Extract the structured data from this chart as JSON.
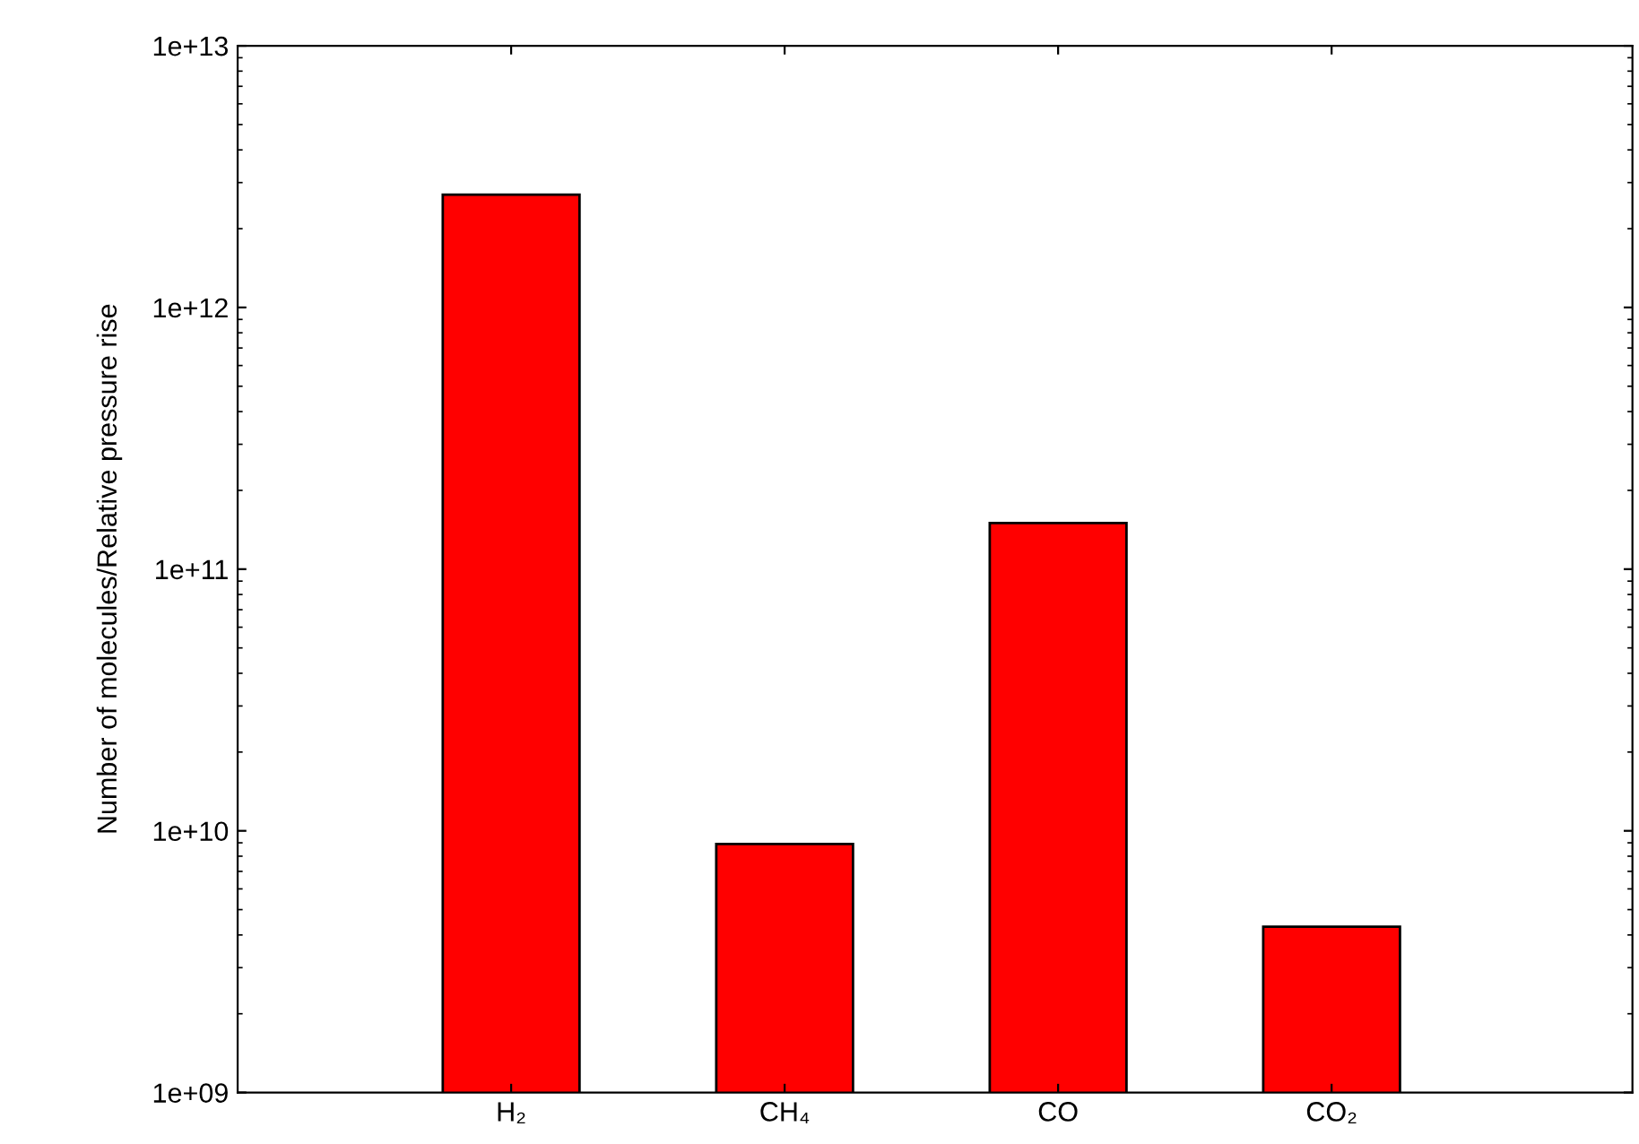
{
  "chart_data": {
    "type": "bar",
    "ylabel": "Number of molecules/Relative pressure rise",
    "categories": [
      "H₂",
      "CH₄",
      "CO",
      "CO₂"
    ],
    "values": [
      2700000000000.0,
      8900000000.0,
      150000000000.0,
      4300000000.0
    ],
    "color": "#ff0000",
    "log": true,
    "ylim": [
      1000000000.0,
      10000000000000.0
    ],
    "yticks": [
      {
        "value": 1000000000.0,
        "label": "1e+09"
      },
      {
        "value": 10000000000.0,
        "label": "1e+10"
      },
      {
        "value": 100000000000.0,
        "label": "1e+11"
      },
      {
        "value": 1000000000000.0,
        "label": "1e+12"
      },
      {
        "value": 10000000000000.0,
        "label": "1e+13"
      }
    ],
    "grid": false,
    "legend": false
  }
}
